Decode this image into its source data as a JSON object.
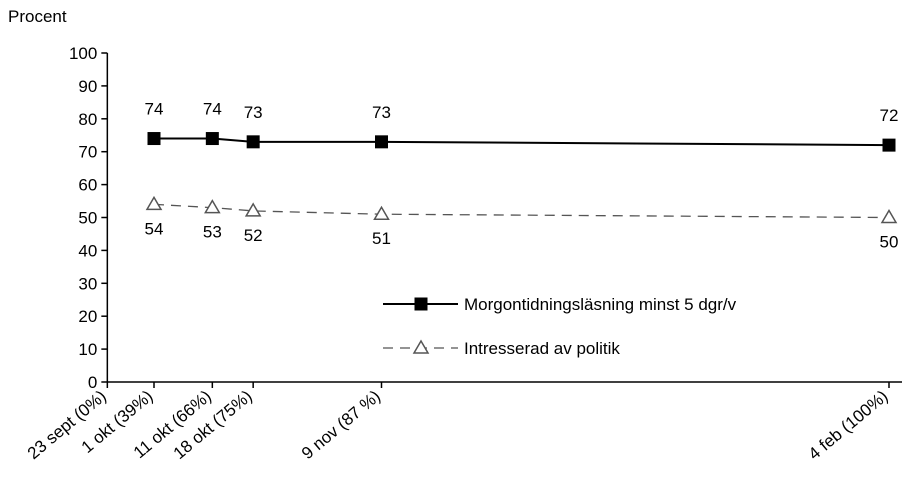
{
  "chart_data": {
    "type": "line",
    "ylabel": "Procent",
    "ylim": [
      0,
      100
    ],
    "yticks": [
      0,
      10,
      20,
      30,
      40,
      50,
      60,
      70,
      80,
      90,
      100
    ],
    "x_days": [
      0,
      8,
      18,
      25,
      47,
      134
    ],
    "categories": [
      "23 sept (0%)",
      "1 okt (39%)",
      "11 okt (66%)",
      "18 okt (75%)",
      "9 nov (87 %)",
      "4 feb (100%)"
    ],
    "series": [
      {
        "name": "Morgontidningsläsning minst 5 dgr/v",
        "marker": "square",
        "line": "solid",
        "color": "#000000",
        "values": [
          null,
          74,
          74,
          73,
          73,
          72
        ]
      },
      {
        "name": "Intresserad av politik",
        "marker": "triangle",
        "line": "dashed",
        "color": "#555555",
        "values": [
          null,
          54,
          53,
          52,
          51,
          50
        ]
      }
    ],
    "legend_position": "inside-lower-right"
  }
}
